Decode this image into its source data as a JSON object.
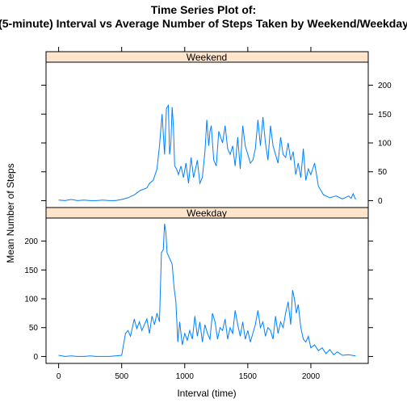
{
  "chart_data": {
    "type": "line",
    "title": "Time Series Plot of:",
    "subtitle": "(5-minute) Interval vs Average Number of Steps Taken by Weekend/Weekday",
    "xlabel": "Interval (time)",
    "ylabel": "Mean Number of Steps",
    "xlim": [
      -100,
      2455
    ],
    "x_ticks": [
      0,
      500,
      1000,
      1500,
      2000
    ],
    "grid": false,
    "panels": [
      {
        "name": "Weekend",
        "ylim": [
          -12,
          240
        ],
        "y_ticks": [
          0,
          50,
          100,
          150,
          200
        ],
        "y_axis_side": "right",
        "series": {
          "x": [
            0,
            50,
            100,
            150,
            200,
            250,
            300,
            350,
            400,
            450,
            500,
            550,
            600,
            650,
            700,
            720,
            750,
            780,
            800,
            820,
            840,
            855,
            870,
            880,
            890,
            900,
            910,
            920,
            935,
            950,
            970,
            990,
            1010,
            1030,
            1050,
            1070,
            1100,
            1120,
            1140,
            1160,
            1175,
            1190,
            1200,
            1210,
            1230,
            1250,
            1270,
            1300,
            1320,
            1340,
            1360,
            1380,
            1400,
            1420,
            1440,
            1460,
            1480,
            1500,
            1520,
            1540,
            1560,
            1580,
            1600,
            1620,
            1640,
            1660,
            1680,
            1700,
            1720,
            1740,
            1760,
            1780,
            1800,
            1820,
            1840,
            1860,
            1880,
            1900,
            1920,
            1940,
            1960,
            1980,
            2000,
            2030,
            2060,
            2100,
            2150,
            2200,
            2250,
            2300,
            2320,
            2335,
            2355
          ],
          "y": [
            1,
            0,
            2,
            0,
            1,
            0,
            0,
            1,
            0,
            0,
            2,
            5,
            10,
            18,
            22,
            30,
            35,
            55,
            95,
            150,
            80,
            160,
            165,
            80,
            100,
            162,
            130,
            60,
            55,
            45,
            60,
            40,
            65,
            30,
            75,
            40,
            70,
            30,
            40,
            85,
            140,
            95,
            120,
            130,
            70,
            60,
            120,
            100,
            130,
            90,
            80,
            95,
            60,
            110,
            55,
            130,
            95,
            80,
            65,
            70,
            90,
            140,
            95,
            145,
            100,
            70,
            130,
            95,
            80,
            65,
            110,
            80,
            75,
            100,
            70,
            85,
            45,
            65,
            40,
            90,
            35,
            55,
            45,
            65,
            25,
            10,
            5,
            8,
            3,
            8,
            4,
            12,
            2
          ]
        }
      },
      {
        "name": "Weekday",
        "ylim": [
          -12,
          240
        ],
        "y_ticks": [
          0,
          50,
          100,
          150,
          200
        ],
        "y_axis_side": "left",
        "series": {
          "x": [
            0,
            50,
            100,
            150,
            200,
            250,
            300,
            350,
            400,
            450,
            500,
            510,
            530,
            550,
            570,
            600,
            620,
            640,
            660,
            680,
            700,
            720,
            740,
            760,
            780,
            800,
            815,
            830,
            840,
            850,
            860,
            880,
            900,
            915,
            930,
            945,
            960,
            980,
            1000,
            1020,
            1040,
            1060,
            1080,
            1100,
            1120,
            1140,
            1160,
            1180,
            1200,
            1220,
            1240,
            1260,
            1280,
            1300,
            1320,
            1340,
            1360,
            1380,
            1400,
            1420,
            1440,
            1460,
            1480,
            1500,
            1520,
            1540,
            1560,
            1580,
            1600,
            1620,
            1640,
            1660,
            1680,
            1700,
            1720,
            1740,
            1760,
            1780,
            1800,
            1820,
            1840,
            1855,
            1870,
            1885,
            1900,
            1920,
            1940,
            1960,
            1980,
            2000,
            2030,
            2060,
            2090,
            2120,
            2150,
            2180,
            2210,
            2250,
            2300,
            2355
          ],
          "y": [
            2,
            0,
            1,
            0,
            0,
            1,
            0,
            0,
            0,
            1,
            2,
            15,
            40,
            45,
            35,
            65,
            48,
            60,
            45,
            55,
            65,
            40,
            70,
            55,
            75,
            60,
            180,
            185,
            230,
            215,
            180,
            170,
            160,
            120,
            95,
            25,
            60,
            20,
            40,
            28,
            45,
            30,
            70,
            35,
            60,
            25,
            55,
            40,
            30,
            75,
            60,
            30,
            50,
            45,
            65,
            30,
            50,
            40,
            80,
            55,
            35,
            60,
            30,
            45,
            25,
            40,
            55,
            80,
            50,
            60,
            35,
            50,
            45,
            30,
            70,
            40,
            60,
            50,
            75,
            95,
            55,
            115,
            100,
            75,
            90,
            50,
            30,
            25,
            35,
            15,
            20,
            10,
            15,
            5,
            12,
            3,
            8,
            2,
            3,
            1
          ]
        }
      }
    ]
  }
}
